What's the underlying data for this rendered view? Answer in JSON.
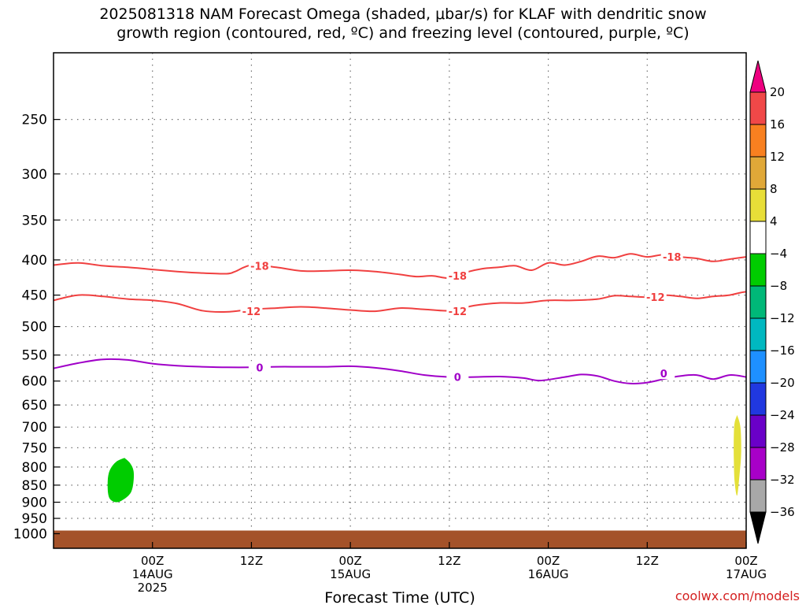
{
  "title_line1": "2025081318 NAM Forecast Omega (shaded, μbar/s) for KLAF with dendritic snow",
  "title_line2": "growth region (contoured, red, ºC) and freezing level (contoured, purple, ºC)",
  "credit": "coolwx.com/models",
  "chart_data": {
    "type": "contour",
    "xlabel": "Forecast Time (UTC)",
    "ylabel": "",
    "xlim": [
      -6,
      78
    ],
    "ylim": [
      1050,
      200
    ],
    "y_scale": "log-pressure",
    "x_unit": "hours since 2025-08-13 18Z",
    "x_ticks": [
      {
        "x": 6,
        "label": "00Z",
        "sub": [
          "14AUG",
          "2025"
        ]
      },
      {
        "x": 18,
        "label": "12Z",
        "sub": []
      },
      {
        "x": 30,
        "label": "00Z",
        "sub": [
          "15AUG"
        ]
      },
      {
        "x": 42,
        "label": "12Z",
        "sub": []
      },
      {
        "x": 54,
        "label": "00Z",
        "sub": [
          "16AUG"
        ]
      },
      {
        "x": 66,
        "label": "12Z",
        "sub": []
      },
      {
        "x": 78,
        "label": "00Z",
        "sub": [
          "17AUG"
        ]
      }
    ],
    "y_ticks": [
      250,
      300,
      350,
      400,
      450,
      500,
      550,
      600,
      650,
      700,
      750,
      800,
      850,
      900,
      950,
      1000
    ],
    "y_grid": [
      250,
      300,
      350,
      400,
      450,
      500,
      550,
      600,
      650,
      700,
      750,
      800,
      850,
      900,
      950
    ],
    "grid": true,
    "contours": [
      {
        "name": "-18",
        "color": "#f04040",
        "label": "-18",
        "points": [
          [
            -6,
            407
          ],
          [
            -3,
            404
          ],
          [
            0,
            408
          ],
          [
            3,
            410
          ],
          [
            6,
            413
          ],
          [
            9,
            416
          ],
          [
            12,
            418
          ],
          [
            15,
            419
          ],
          [
            16,
            416
          ],
          [
            18,
            407
          ],
          [
            21,
            410
          ],
          [
            24,
            415
          ],
          [
            27,
            415
          ],
          [
            30,
            414
          ],
          [
            33,
            416
          ],
          [
            36,
            420
          ],
          [
            38,
            423
          ],
          [
            40,
            422
          ],
          [
            42,
            425
          ],
          [
            44,
            417
          ],
          [
            46,
            412
          ],
          [
            48,
            410
          ],
          [
            50,
            408
          ],
          [
            52,
            414
          ],
          [
            54,
            404
          ],
          [
            56,
            407
          ],
          [
            58,
            402
          ],
          [
            60,
            395
          ],
          [
            62,
            397
          ],
          [
            64,
            392
          ],
          [
            66,
            396
          ],
          [
            68,
            393
          ],
          [
            70,
            396
          ],
          [
            72,
            398
          ],
          [
            74,
            402
          ],
          [
            76,
            399
          ],
          [
            78,
            396
          ],
          [
            80,
            393
          ],
          [
            82,
            389
          ]
        ],
        "labels": [
          {
            "x": 19,
            "p": 408
          },
          {
            "x": 43,
            "p": 422
          },
          {
            "x": 69,
            "p": 396
          }
        ]
      },
      {
        "name": "-12",
        "color": "#f04040",
        "label": "-12",
        "points": [
          [
            -6,
            458
          ],
          [
            -3,
            450
          ],
          [
            0,
            452
          ],
          [
            3,
            456
          ],
          [
            6,
            458
          ],
          [
            9,
            463
          ],
          [
            12,
            474
          ],
          [
            15,
            476
          ],
          [
            18,
            472
          ],
          [
            21,
            470
          ],
          [
            24,
            468
          ],
          [
            27,
            470
          ],
          [
            30,
            473
          ],
          [
            33,
            475
          ],
          [
            36,
            470
          ],
          [
            39,
            472
          ],
          [
            42,
            474
          ],
          [
            45,
            466
          ],
          [
            48,
            462
          ],
          [
            51,
            462
          ],
          [
            54,
            458
          ],
          [
            57,
            458
          ],
          [
            60,
            456
          ],
          [
            62,
            451
          ],
          [
            64,
            452
          ],
          [
            66,
            453
          ],
          [
            68,
            450
          ],
          [
            70,
            452
          ],
          [
            72,
            455
          ],
          [
            74,
            452
          ],
          [
            76,
            450
          ],
          [
            78,
            445
          ],
          [
            80,
            447
          ],
          [
            82,
            446
          ]
        ],
        "labels": [
          {
            "x": 18,
            "p": 475
          },
          {
            "x": 43,
            "p": 475
          },
          {
            "x": 67,
            "p": 453
          }
        ]
      },
      {
        "name": "0",
        "color": "#a000c8",
        "label": "0",
        "points": [
          [
            -6,
            575
          ],
          [
            -3,
            565
          ],
          [
            0,
            558
          ],
          [
            3,
            559
          ],
          [
            6,
            566
          ],
          [
            9,
            570
          ],
          [
            12,
            572
          ],
          [
            15,
            573
          ],
          [
            18,
            573
          ],
          [
            21,
            572
          ],
          [
            24,
            572
          ],
          [
            27,
            572
          ],
          [
            30,
            571
          ],
          [
            33,
            574
          ],
          [
            36,
            580
          ],
          [
            39,
            588
          ],
          [
            42,
            592
          ],
          [
            45,
            592
          ],
          [
            48,
            591
          ],
          [
            51,
            594
          ],
          [
            53,
            599
          ],
          [
            56,
            592
          ],
          [
            58,
            587
          ],
          [
            60,
            590
          ],
          [
            62,
            600
          ],
          [
            64,
            605
          ],
          [
            66,
            603
          ],
          [
            68,
            596
          ],
          [
            70,
            590
          ],
          [
            72,
            588
          ],
          [
            74,
            596
          ],
          [
            76,
            588
          ],
          [
            78,
            592
          ],
          [
            80,
            600
          ],
          [
            82,
            590
          ]
        ],
        "labels": [
          {
            "x": 19,
            "p": 573
          },
          {
            "x": 43,
            "p": 592
          },
          {
            "x": 68,
            "p": 585
          }
        ]
      }
    ],
    "shaded_regions": [
      {
        "name": "-8 to -4",
        "color": "#00cc00",
        "points": [
          [
            2.6,
            776
          ],
          [
            3.3,
            790
          ],
          [
            3.7,
            810
          ],
          [
            3.7,
            840
          ],
          [
            3.4,
            870
          ],
          [
            2.6,
            890
          ],
          [
            1.7,
            900
          ],
          [
            0.9,
            892
          ],
          [
            0.6,
            870
          ],
          [
            0.6,
            830
          ],
          [
            0.9,
            805
          ],
          [
            1.6,
            786
          ]
        ]
      },
      {
        "name": "4 to 8",
        "color": "#e4e03a",
        "points": [
          [
            76.9,
            672
          ],
          [
            77.3,
            700
          ],
          [
            77.4,
            760
          ],
          [
            77.2,
            820
          ],
          [
            76.9,
            880
          ],
          [
            76.6,
            840
          ],
          [
            76.5,
            780
          ],
          [
            76.5,
            720
          ],
          [
            76.6,
            690
          ]
        ]
      }
    ],
    "ground": {
      "color": "#a4522a",
      "from_pressure": 1000
    },
    "colorbar": {
      "labels": [
        "20",
        "16",
        "12",
        "8",
        "4",
        "−4",
        "−8",
        "−12",
        "−16",
        "−20",
        "−24",
        "−28",
        "−32",
        "−36"
      ],
      "colors": [
        "#ee0080",
        "#f04848",
        "#f88020",
        "#e0a838",
        "#e8de38",
        "#ffffff",
        "#00cc00",
        "#00b878",
        "#00b8c0",
        "#1e90ff",
        "#2038e0",
        "#6a00c8",
        "#a800c8",
        "#a8a8a8",
        "#000000"
      ]
    }
  }
}
